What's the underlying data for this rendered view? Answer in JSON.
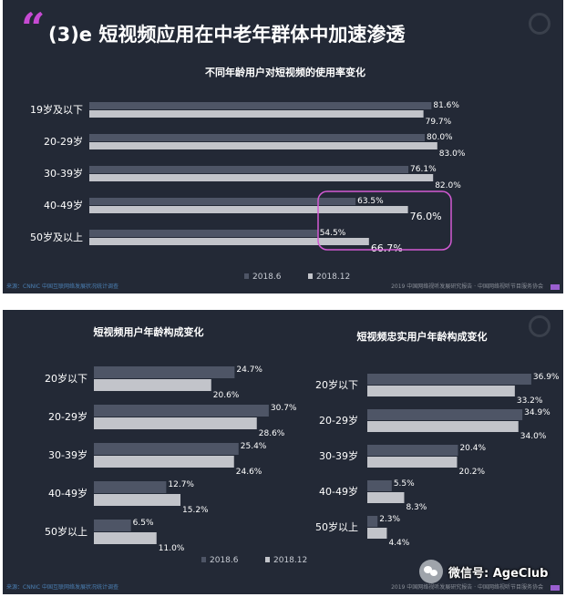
{
  "colors": {
    "bg": "#232936",
    "series_2018_6": "#4e5566",
    "series_2018_12": "#c2c4ca",
    "highlight": "#d35ad4",
    "accent": "#c64ad3"
  },
  "top": {
    "heading": "(3)e 短视频应用在中老年群体中加速渗透",
    "quote_icon": "quote-icon",
    "source_left": "来源：CNNIC 中国互联网络发展状况统计调查",
    "source_right": "2019 中国网络视听发展研究报告 · 中国网络视听节目服务协会"
  },
  "bottom": {
    "source_left": "来源：CNNIC 中国互联网络发展状况统计调查",
    "source_right": "2019 中国网络视听发展研究报告 · 中国网络视听节目服务协会"
  },
  "watermark": {
    "icon": "wechat-icon",
    "text": "微信号: AgeClub"
  },
  "chart_data": [
    {
      "type": "bar",
      "orientation": "horizontal",
      "title": "不同年龄用户对短视频的使用率变化",
      "categories": [
        "19岁及以下",
        "20-29岁",
        "30-39岁",
        "40-49岁",
        "50岁及以上"
      ],
      "series": [
        {
          "name": "2018.6",
          "values": [
            81.6,
            80.0,
            76.1,
            63.5,
            54.5
          ]
        },
        {
          "name": "2018.12",
          "values": [
            79.7,
            83.0,
            82.0,
            76.0,
            66.7
          ]
        }
      ],
      "data_labels": [
        [
          "81.6%",
          "80.0%",
          "76.1%",
          "63.5%",
          "54.5%"
        ],
        [
          "79.7%",
          "83.0%",
          "82.0%",
          "76.0%",
          "66.7%"
        ]
      ],
      "xlim": [
        0,
        100
      ],
      "legend_position": "bottom",
      "highlighted_categories": [
        "40-49岁",
        "50岁及以上"
      ]
    },
    {
      "type": "bar",
      "orientation": "horizontal",
      "title": "短视频用户年龄构成变化",
      "categories": [
        "20岁以下",
        "20-29岁",
        "30-39岁",
        "40-49岁",
        "50岁以上"
      ],
      "series": [
        {
          "name": "2018.6",
          "values": [
            24.7,
            30.7,
            25.4,
            12.7,
            6.5
          ]
        },
        {
          "name": "2018.12",
          "values": [
            20.6,
            28.6,
            24.6,
            15.2,
            11.0
          ]
        }
      ],
      "data_labels": [
        [
          "24.7%",
          "30.7%",
          "25.4%",
          "12.7%",
          "6.5%"
        ],
        [
          "20.6%",
          "28.6%",
          "24.6%",
          "15.2%",
          "11.0%"
        ]
      ],
      "xlim": [
        0,
        40
      ],
      "legend_position": "bottom"
    },
    {
      "type": "bar",
      "orientation": "horizontal",
      "title": "短视频忠实用户年龄构成变化",
      "categories": [
        "20岁以下",
        "20-29岁",
        "30-39岁",
        "40-49岁",
        "50岁以上"
      ],
      "series": [
        {
          "name": "2018.6",
          "values": [
            36.9,
            34.9,
            20.4,
            5.5,
            2.3
          ]
        },
        {
          "name": "2018.12",
          "values": [
            33.2,
            34.0,
            20.2,
            8.3,
            4.4
          ]
        }
      ],
      "data_labels": [
        [
          "36.9%",
          "34.9%",
          "20.4%",
          "5.5%",
          "2.3%"
        ],
        [
          "33.2%",
          "34.0%",
          "20.2%",
          "8.3%",
          "4.4%"
        ]
      ],
      "xlim": [
        0,
        40
      ],
      "legend_position": "none"
    }
  ]
}
